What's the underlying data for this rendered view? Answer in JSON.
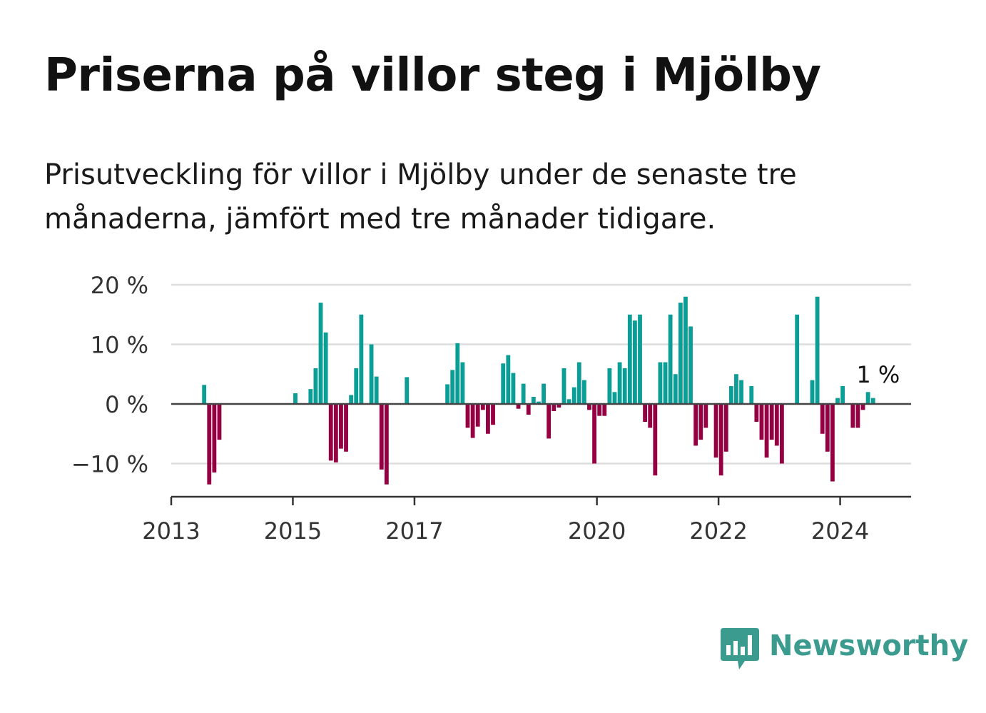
{
  "title": "Priserna på villor steg i Mjölby",
  "subtitle": "Prisutveckling för villor i Mjölby under de senaste tre månaderna, jämfört med tre månader tidigare.",
  "brand": {
    "name": "Newsworthy",
    "color": "#3a9b8e"
  },
  "colors": {
    "positive": "#0a9e96",
    "negative": "#950043",
    "grid": "#dddddd",
    "axis": "#333333"
  },
  "chart_data": {
    "type": "bar",
    "title": "",
    "xlabel": "",
    "ylabel": "",
    "ylim": [
      -15,
      20
    ],
    "xlim": [
      "2013-01",
      "2025-03"
    ],
    "y_ticks": [
      {
        "value": 20,
        "label": "20 %"
      },
      {
        "value": 10,
        "label": "10 %"
      },
      {
        "value": 0,
        "label": "0 %"
      },
      {
        "value": -10,
        "label": "−10 %"
      }
    ],
    "x_ticks": [
      {
        "date": "2013-01",
        "label": "2013"
      },
      {
        "date": "2015-01",
        "label": "2015"
      },
      {
        "date": "2017-01",
        "label": "2017"
      },
      {
        "date": "2020-01",
        "label": "2020"
      },
      {
        "date": "2022-01",
        "label": "2022"
      },
      {
        "date": "2024-01",
        "label": "2024"
      }
    ],
    "grid": true,
    "annotation": {
      "date": "2024-08",
      "value": 1,
      "label": "1 %"
    },
    "series": [
      {
        "points": [
          [
            "2013-07",
            3.2
          ],
          [
            "2013-08",
            -13.5
          ],
          [
            "2013-09",
            -11.5
          ],
          [
            "2013-10",
            -6
          ],
          [
            "2015-01",
            1.8
          ],
          [
            "2015-04",
            2.5
          ],
          [
            "2015-05",
            6
          ],
          [
            "2015-06",
            17
          ],
          [
            "2015-07",
            12
          ],
          [
            "2015-08",
            -9.5
          ],
          [
            "2015-09",
            -9.8
          ],
          [
            "2015-10",
            -7.5
          ],
          [
            "2015-11",
            -8
          ],
          [
            "2015-12",
            1.5
          ],
          [
            "2016-01",
            6
          ],
          [
            "2016-02",
            15
          ],
          [
            "2016-04",
            10
          ],
          [
            "2016-05",
            4.6
          ],
          [
            "2016-06",
            -11
          ],
          [
            "2016-07",
            -13.5
          ],
          [
            "2016-11",
            4.5
          ],
          [
            "2017-07",
            3.3
          ],
          [
            "2017-08",
            5.7
          ],
          [
            "2017-09",
            10.2
          ],
          [
            "2017-10",
            7
          ],
          [
            "2017-11",
            -4
          ],
          [
            "2017-12",
            -5.7
          ],
          [
            "2018-01",
            -3.8
          ],
          [
            "2018-02",
            -1
          ],
          [
            "2018-03",
            -5
          ],
          [
            "2018-04",
            -3.5
          ],
          [
            "2018-06",
            6.8
          ],
          [
            "2018-07",
            8.2
          ],
          [
            "2018-08",
            5.2
          ],
          [
            "2018-09",
            -0.8
          ],
          [
            "2018-10",
            3.4
          ],
          [
            "2018-11",
            -1.8
          ],
          [
            "2018-12",
            1.2
          ],
          [
            "2019-01",
            0.4
          ],
          [
            "2019-02",
            3.4
          ],
          [
            "2019-03",
            -5.8
          ],
          [
            "2019-04",
            -1.2
          ],
          [
            "2019-05",
            -0.6
          ],
          [
            "2019-06",
            6
          ],
          [
            "2019-07",
            0.8
          ],
          [
            "2019-08",
            2.8
          ],
          [
            "2019-09",
            7
          ],
          [
            "2019-10",
            4
          ],
          [
            "2019-11",
            -1
          ],
          [
            "2019-12",
            -10
          ],
          [
            "2020-01",
            -2
          ],
          [
            "2020-02",
            -2
          ],
          [
            "2020-03",
            6
          ],
          [
            "2020-04",
            2
          ],
          [
            "2020-05",
            7
          ],
          [
            "2020-06",
            6
          ],
          [
            "2020-07",
            15
          ],
          [
            "2020-08",
            14
          ],
          [
            "2020-09",
            15
          ],
          [
            "2020-10",
            -3
          ],
          [
            "2020-11",
            -4
          ],
          [
            "2020-12",
            -12
          ],
          [
            "2021-01",
            7
          ],
          [
            "2021-02",
            7
          ],
          [
            "2021-03",
            15
          ],
          [
            "2021-04",
            5
          ],
          [
            "2021-05",
            17
          ],
          [
            "2021-06",
            18
          ],
          [
            "2021-07",
            13
          ],
          [
            "2021-08",
            -7
          ],
          [
            "2021-09",
            -6
          ],
          [
            "2021-10",
            -4
          ],
          [
            "2021-12",
            -9
          ],
          [
            "2022-01",
            -12
          ],
          [
            "2022-02",
            -8
          ],
          [
            "2022-03",
            3
          ],
          [
            "2022-04",
            5
          ],
          [
            "2022-05",
            4
          ],
          [
            "2022-07",
            3
          ],
          [
            "2022-08",
            -3
          ],
          [
            "2022-09",
            -6
          ],
          [
            "2022-10",
            -9
          ],
          [
            "2022-11",
            -6
          ],
          [
            "2022-12",
            -7
          ],
          [
            "2023-01",
            -10
          ],
          [
            "2023-04",
            15
          ],
          [
            "2023-07",
            4
          ],
          [
            "2023-08",
            18
          ],
          [
            "2023-09",
            -5
          ],
          [
            "2023-10",
            -8
          ],
          [
            "2023-11",
            -13
          ],
          [
            "2023-12",
            1
          ],
          [
            "2024-01",
            3
          ],
          [
            "2024-03",
            -4
          ],
          [
            "2024-04",
            -4
          ],
          [
            "2024-05",
            -1
          ],
          [
            "2024-06",
            2
          ],
          [
            "2024-07",
            1
          ]
        ]
      }
    ]
  }
}
